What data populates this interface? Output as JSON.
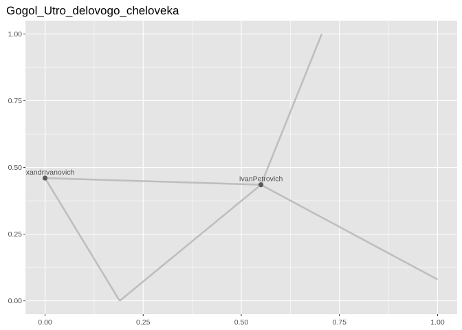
{
  "chart_data": {
    "type": "network",
    "title": "Gogol_Utro_delovogo_cheloveka",
    "xlabel": "",
    "ylabel": "",
    "xlim": [
      -0.05,
      1.05
    ],
    "ylim": [
      -0.05,
      1.05
    ],
    "x_ticks": [
      0.0,
      0.25,
      0.5,
      0.75,
      1.0
    ],
    "x_tick_labels": [
      "0.00",
      "0.25",
      "0.50",
      "0.75",
      "1.00"
    ],
    "y_ticks": [
      0.0,
      0.25,
      0.5,
      0.75,
      1.0
    ],
    "y_tick_labels": [
      "0.00",
      "0.25",
      "0.50",
      "0.75",
      "1.00"
    ],
    "grid": true,
    "panel_background": "#e5e5e5",
    "grid_color": "#ffffff",
    "edge_color": "#bebebe",
    "node_color": "#595959",
    "label_color": "#4d4d4d",
    "named_nodes": [
      {
        "id": "alexandr",
        "label": "AlexandrIvanovich",
        "x": 0.0,
        "y": 0.46
      },
      {
        "id": "ivan",
        "label": "IvanPetrovich",
        "x": 0.55,
        "y": 0.435
      }
    ],
    "unnamed_nodes": [
      {
        "id": "u1",
        "x": 0.19,
        "y": 0.0
      },
      {
        "id": "u2",
        "x": 0.705,
        "y": 1.0
      },
      {
        "id": "u3",
        "x": 1.0,
        "y": 0.08
      }
    ],
    "edges": [
      {
        "from": "alexandr",
        "to": "ivan"
      },
      {
        "from": "alexandr",
        "to": "u1"
      },
      {
        "from": "u1",
        "to": "ivan"
      },
      {
        "from": "ivan",
        "to": "u2"
      },
      {
        "from": "ivan",
        "to": "u3"
      }
    ]
  }
}
